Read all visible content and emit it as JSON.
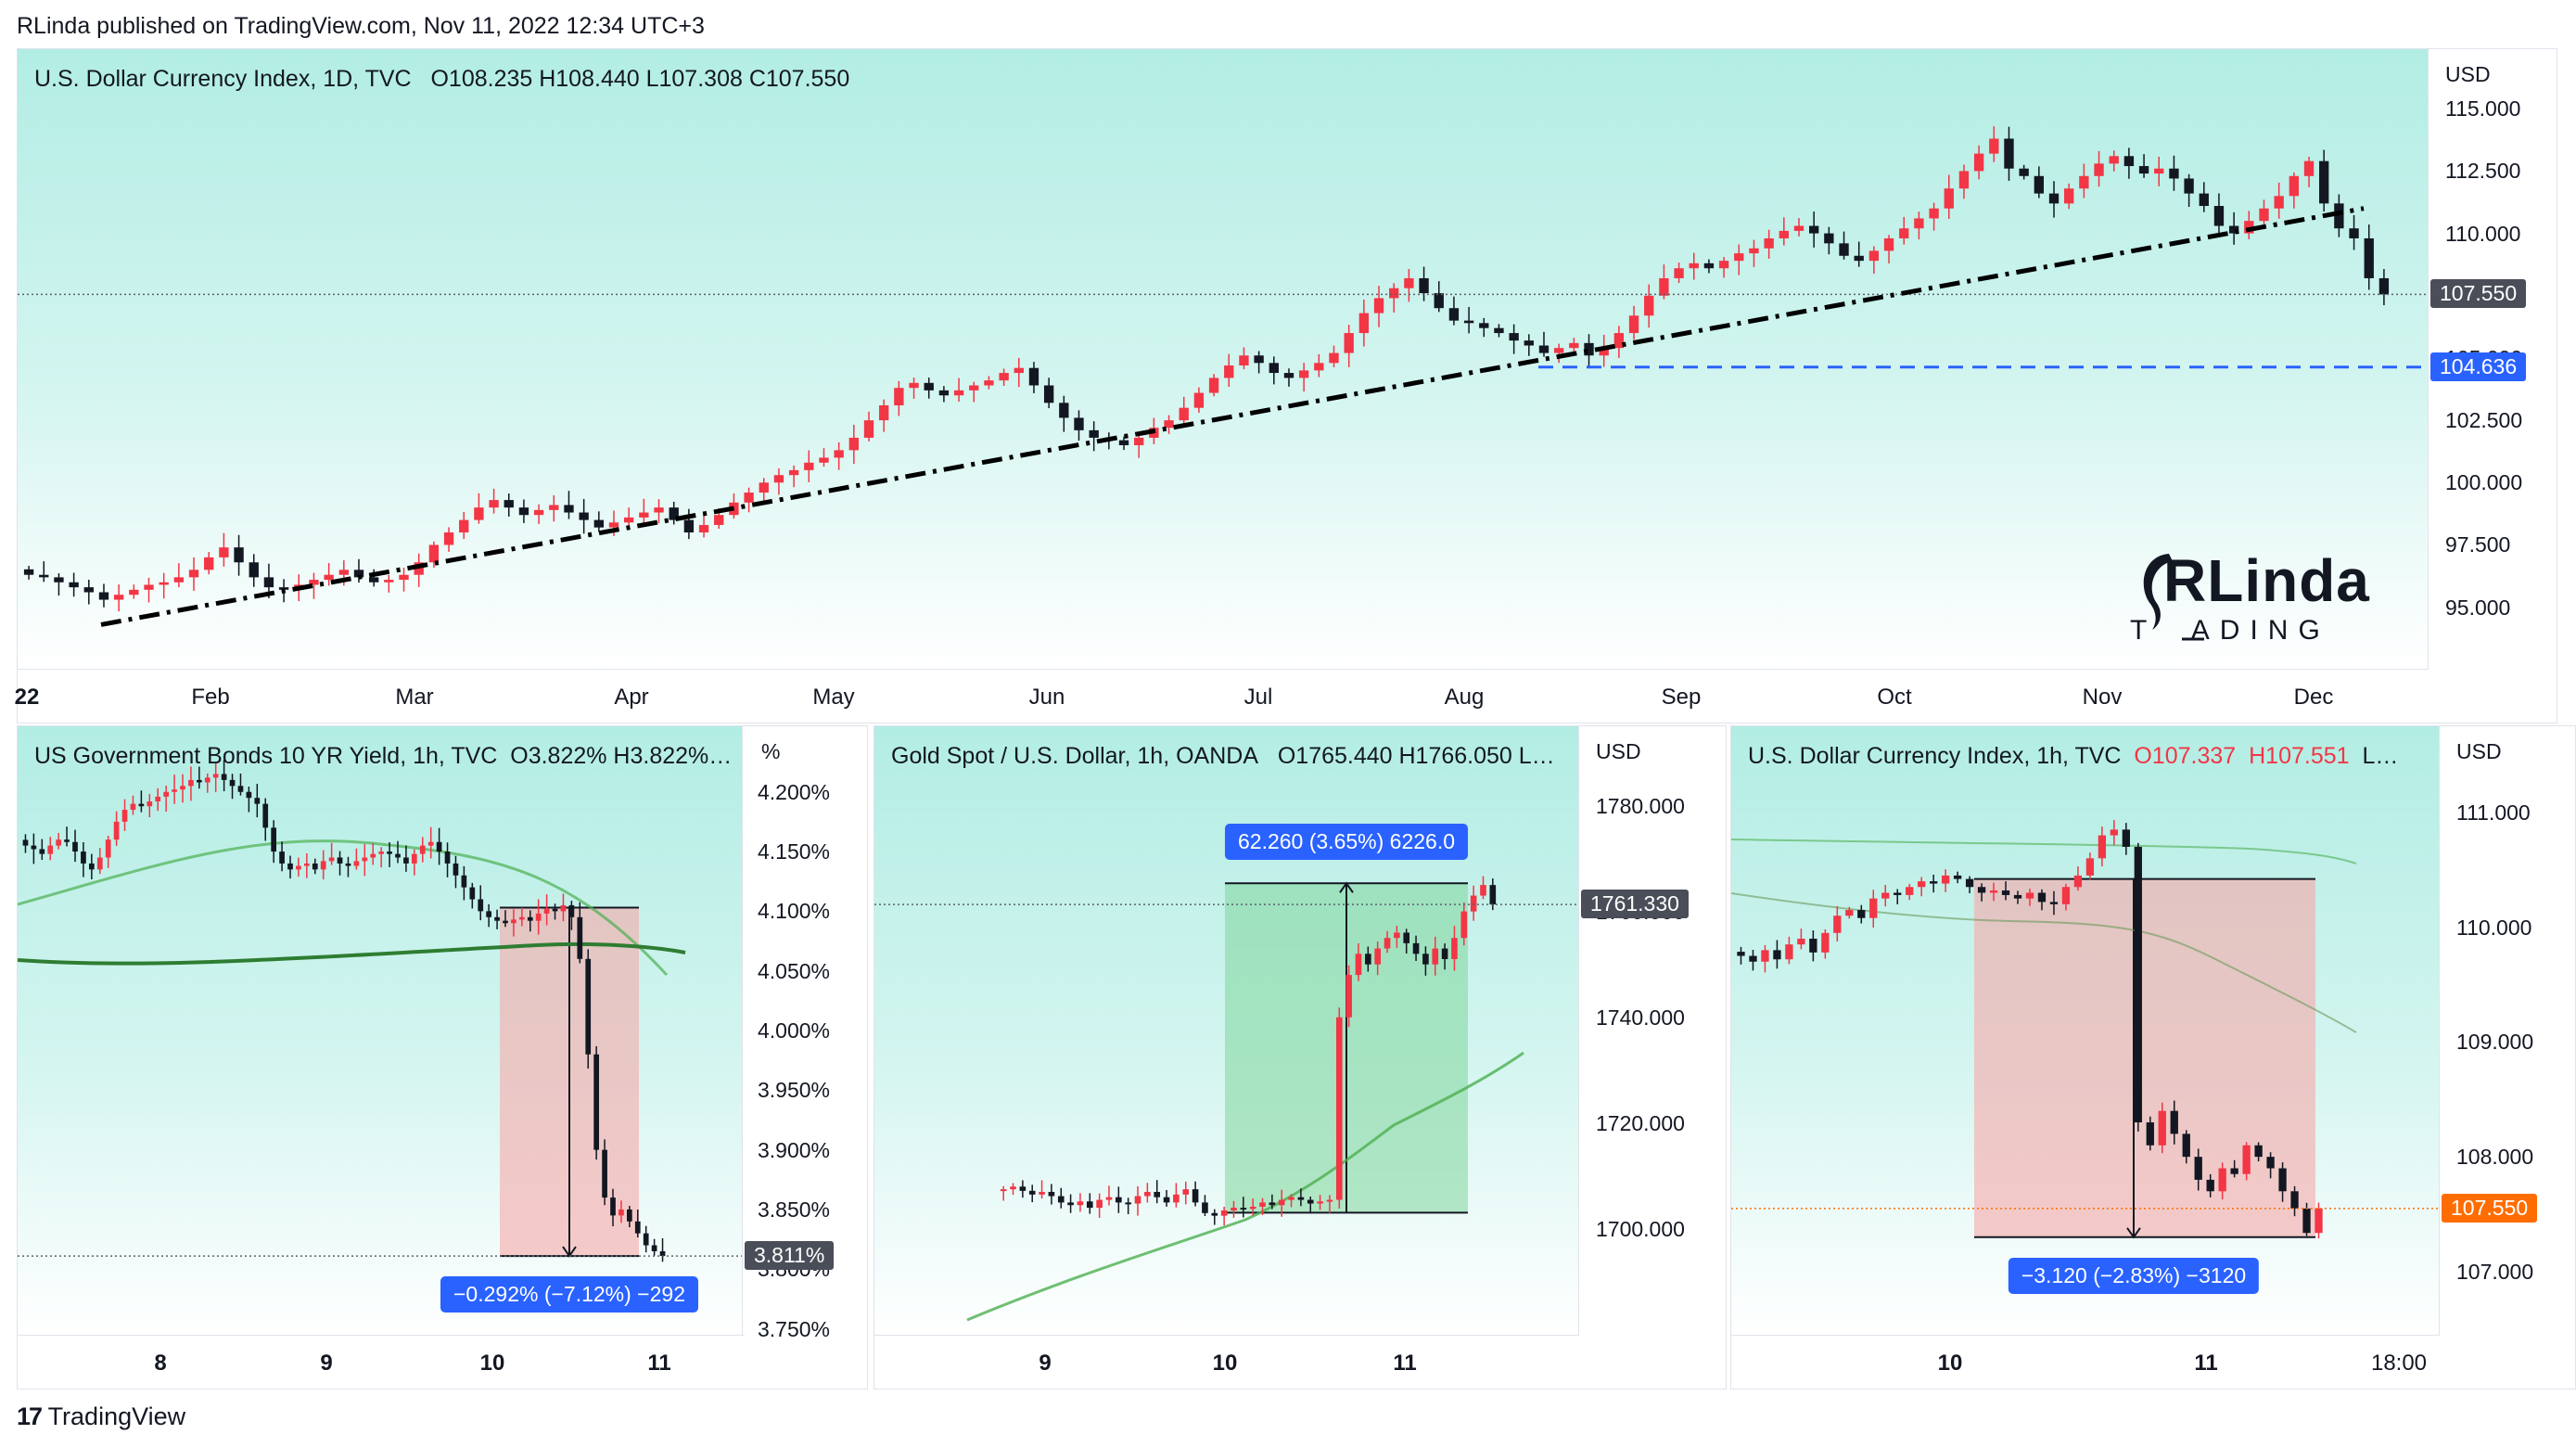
{
  "header": {
    "published": "RLinda published on TradingView.com, Nov 11, 2022 12:34 UTC+3"
  },
  "footer": {
    "brand": "TradingView",
    "logo_icon": "tradingview-logo-icon"
  },
  "logo": {
    "line1": "RLinda",
    "line2": "T  ADING",
    "icon": "rlinda-head-logo"
  },
  "colors": {
    "up": "#f23645",
    "down": "#131722",
    "trendline": "#000000",
    "support": "#2962ff",
    "ma": "#4caf50",
    "ma_dark": "#2e7d32",
    "measure_red": "#f7a9a9",
    "measure_green": "#7fd69a",
    "badge_blue": "#2962ff",
    "badge_gray": "#4a4e59",
    "badge_orange": "#ff6d00"
  },
  "chart_data": [
    {
      "type": "candlestick",
      "title": "U.S. Dollar Currency Index, 1D, TVC",
      "ohlc_label": "O108.235   H108.440   L107.308   C107.550",
      "unit": "USD",
      "y_ticks": [
        "115.000",
        "112.500",
        "110.000",
        "107.500",
        "105.000",
        "102.500",
        "100.000",
        "97.500",
        "95.000"
      ],
      "y_tick_values": [
        115,
        112.5,
        110,
        107.5,
        105,
        102.5,
        100,
        97.5,
        95
      ],
      "ylim": [
        93.2,
        116.2
      ],
      "x_ticks": [
        "22",
        "Feb",
        "Mar",
        "Apr",
        "May",
        "Jun",
        "Jul",
        "Aug",
        "Sep",
        "Oct",
        "Nov",
        "Dec"
      ],
      "price_badge": "107.550",
      "level_badge": "104.636",
      "level_value": 104.636,
      "trendline": {
        "from": [
          0,
          94.3
        ],
        "to": [
          1,
          111.0
        ]
      },
      "closes": [
        96.3,
        96.2,
        96.0,
        95.8,
        95.6,
        95.3,
        95.5,
        95.7,
        95.9,
        96.0,
        96.2,
        96.5,
        97.0,
        97.4,
        96.8,
        96.2,
        95.8,
        95.7,
        95.9,
        96.1,
        96.3,
        96.5,
        96.2,
        96.0,
        96.1,
        96.3,
        96.8,
        97.5,
        98.0,
        98.5,
        99.0,
        99.3,
        99.0,
        98.7,
        98.9,
        99.1,
        98.8,
        98.5,
        98.2,
        98.4,
        98.6,
        98.8,
        99.0,
        98.5,
        98.0,
        98.3,
        98.7,
        99.2,
        99.6,
        100.0,
        100.3,
        100.5,
        100.8,
        101.0,
        101.3,
        101.8,
        102.5,
        103.1,
        103.8,
        104.0,
        103.7,
        103.5,
        103.7,
        103.9,
        104.1,
        104.4,
        104.6,
        103.9,
        103.2,
        102.6,
        102.1,
        101.8,
        101.7,
        101.5,
        101.8,
        102.2,
        102.5,
        103.0,
        103.6,
        104.2,
        104.7,
        105.1,
        104.8,
        104.4,
        104.2,
        104.5,
        104.8,
        105.2,
        106.0,
        106.8,
        107.4,
        107.8,
        108.2,
        107.6,
        107.0,
        106.5,
        106.4,
        106.2,
        106.0,
        105.7,
        105.5,
        105.2,
        105.4,
        105.6,
        105.1,
        105.4,
        106.0,
        106.7,
        107.5,
        108.2,
        108.6,
        108.8,
        108.6,
        108.9,
        109.2,
        109.4,
        109.8,
        110.1,
        110.3,
        110.0,
        109.6,
        109.1,
        108.9,
        109.3,
        109.8,
        110.2,
        110.6,
        111.0,
        111.8,
        112.5,
        113.2,
        113.8,
        112.6,
        112.3,
        111.6,
        111.2,
        111.8,
        112.3,
        112.8,
        113.1,
        112.7,
        112.4,
        112.6,
        112.2,
        111.6,
        111.1,
        110.3,
        110.0,
        110.5,
        111.0,
        111.5,
        112.3,
        112.9,
        111.2,
        110.2,
        109.8,
        108.2,
        107.55
      ]
    },
    {
      "type": "candlestick",
      "title": "US Government Bonds 10 YR Yield, 1h, TVC",
      "ohlc_label": "O3.822%   H3.822%…",
      "unit": "%",
      "y_ticks": [
        "4.200%",
        "4.150%",
        "4.100%",
        "4.050%",
        "4.000%",
        "3.950%",
        "3.900%",
        "3.850%",
        "3.800%",
        "3.750%"
      ],
      "y_tick_values": [
        4.2,
        4.15,
        4.1,
        4.05,
        4.0,
        3.95,
        3.9,
        3.85,
        3.8,
        3.75
      ],
      "ylim": [
        3.745,
        4.255
      ],
      "x_ticks": [
        "8",
        "9",
        "10",
        "11"
      ],
      "price_badge": "3.811%",
      "measure_label": "−0.292% (−7.12%) −292",
      "measure_from": 4.103,
      "measure_to": 3.811,
      "closes": [
        4.155,
        4.152,
        4.148,
        4.155,
        4.16,
        4.158,
        4.15,
        4.14,
        4.135,
        4.145,
        4.16,
        4.175,
        4.185,
        4.19,
        4.188,
        4.192,
        4.196,
        4.2,
        4.202,
        4.205,
        4.21,
        4.208,
        4.212,
        4.215,
        4.21,
        4.205,
        4.2,
        4.195,
        4.19,
        4.17,
        4.15,
        4.14,
        4.135,
        4.138,
        4.14,
        4.135,
        4.142,
        4.145,
        4.14,
        4.138,
        4.142,
        4.145,
        4.148,
        4.15,
        4.148,
        4.145,
        4.14,
        4.148,
        4.155,
        4.158,
        4.15,
        4.14,
        4.13,
        4.12,
        4.11,
        4.1,
        4.095,
        4.092,
        4.09,
        4.093,
        4.095,
        4.092,
        4.098,
        4.102,
        4.1,
        4.105,
        4.095,
        4.06,
        3.98,
        3.9,
        3.86,
        3.845,
        3.85,
        3.84,
        3.83,
        3.82,
        3.815,
        3.811
      ]
    },
    {
      "type": "candlestick",
      "title": "Gold Spot / U.S. Dollar, 1h, OANDA",
      "ohlc_label": "O1765.440   H1766.050   L…",
      "unit": "USD",
      "y_ticks": [
        "1780.000",
        "1760.000",
        "1740.000",
        "1720.000",
        "1700.000"
      ],
      "y_tick_values": [
        1780,
        1760,
        1740,
        1720,
        1700
      ],
      "ylim": [
        1680,
        1795
      ],
      "x_ticks": [
        "9",
        "10",
        "11"
      ],
      "price_badge": "1761.330",
      "measure_label": "62.260 (3.65%) 6226.0",
      "measure_from": 1703.07,
      "measure_to": 1765.33,
      "closes": [
        1707.5,
        1708.0,
        1707.2,
        1706.5,
        1707.0,
        1706.2,
        1705.0,
        1704.5,
        1705.2,
        1704.0,
        1705.5,
        1706.0,
        1705.0,
        1704.8,
        1706.2,
        1707.0,
        1706.0,
        1705.0,
        1706.5,
        1707.5,
        1705.0,
        1703.0,
        1702.5,
        1703.5,
        1704.0,
        1703.8,
        1704.2,
        1705.0,
        1704.5,
        1705.5,
        1706.0,
        1705.5,
        1704.8,
        1705.2,
        1705.5,
        1740.0,
        1748.0,
        1752.0,
        1750.0,
        1753.0,
        1755.0,
        1756.0,
        1754.0,
        1752.0,
        1750.0,
        1753.0,
        1751.0,
        1755.0,
        1760.0,
        1763.0,
        1765.0,
        1761.33
      ]
    },
    {
      "type": "candlestick",
      "title": "U.S. Dollar Currency Index, 1h, TVC",
      "ohlc_o": "O107.337",
      "ohlc_h": "H107.551",
      "ohlc_rest": "L…",
      "unit": "USD",
      "y_ticks": [
        "111.000",
        "110.000",
        "109.000",
        "108.000",
        "107.000"
      ],
      "y_tick_values": [
        111,
        110,
        109,
        108,
        107
      ],
      "ylim": [
        106.45,
        111.75
      ],
      "x_ticks": [
        "10",
        "11",
        "18:00"
      ],
      "price_badge": "107.550",
      "measure_label": "−3.120 (−2.83%) −3120",
      "measure_from": 110.42,
      "measure_to": 107.3,
      "closes": [
        109.75,
        109.7,
        109.8,
        109.72,
        109.85,
        109.9,
        109.78,
        109.95,
        110.1,
        110.15,
        110.08,
        110.25,
        110.3,
        110.28,
        110.35,
        110.4,
        110.38,
        110.45,
        110.42,
        110.35,
        110.3,
        110.32,
        110.28,
        110.25,
        110.3,
        110.22,
        110.2,
        110.35,
        110.45,
        110.6,
        110.8,
        110.85,
        110.7,
        108.3,
        108.1,
        108.4,
        108.2,
        108.0,
        107.8,
        107.7,
        107.9,
        107.85,
        108.1,
        108.0,
        107.9,
        107.7,
        107.55,
        107.337,
        107.55
      ]
    }
  ]
}
